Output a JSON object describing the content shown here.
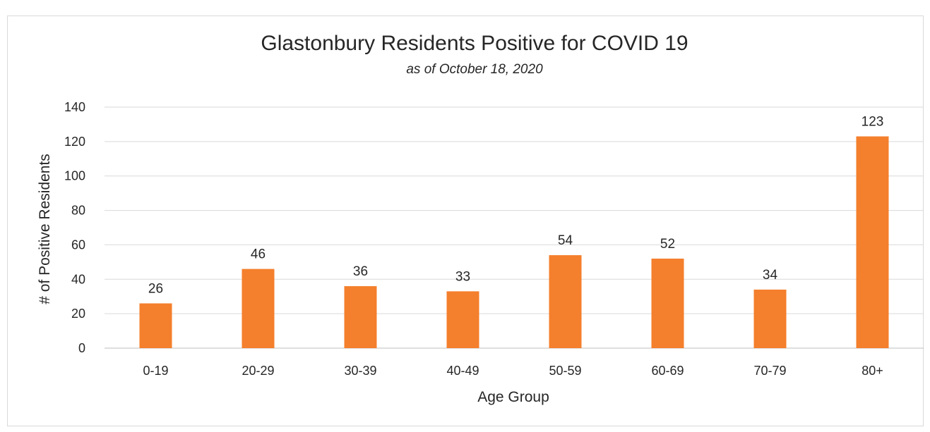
{
  "chart_data": {
    "type": "bar",
    "title": "Glastonbury Residents Positive for COVID 19",
    "subtitle": "as of October 18, 2020",
    "xlabel": "Age Group",
    "ylabel": "# of Positive Residents",
    "categories": [
      "0-19",
      "20-29",
      "30-39",
      "40-49",
      "50-59",
      "60-69",
      "70-79",
      "80+"
    ],
    "values": [
      26,
      46,
      36,
      33,
      54,
      52,
      34,
      123
    ],
    "ylim": [
      0,
      140
    ],
    "yticks": [
      0,
      20,
      40,
      60,
      80,
      100,
      120,
      140
    ],
    "grid": true,
    "legend": "none",
    "bar_color": "#F47F2C"
  }
}
